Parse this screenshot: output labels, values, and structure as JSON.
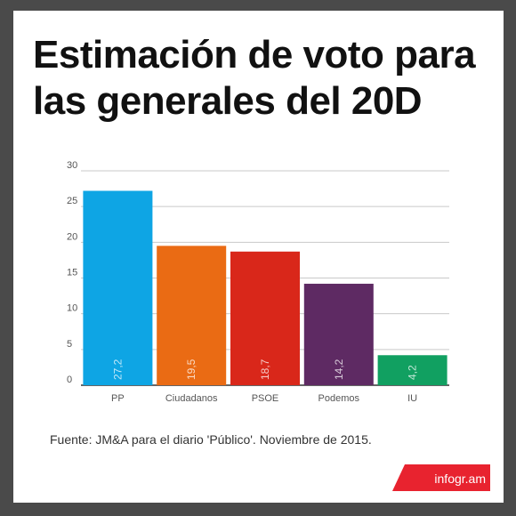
{
  "title": "Estimación de voto para las generales del 20D",
  "source": "Fuente:  JM&A para el diario 'Público'.  Noviembre de 2015.",
  "logo": {
    "text": "infogr.am",
    "color": "#e8232f"
  },
  "chart_data": {
    "type": "bar",
    "categories": [
      "PP",
      "Ciudadanos",
      "PSOE",
      "Podemos",
      "IU"
    ],
    "values": [
      27.2,
      19.5,
      18.7,
      14.2,
      4.2
    ],
    "value_labels": [
      "27,2",
      "19,5",
      "18,7",
      "14,2",
      "4,2"
    ],
    "colors": [
      "#0ea5e4",
      "#ea6b14",
      "#d9271a",
      "#5e2a63",
      "#11a061"
    ],
    "yticks": [
      0,
      5,
      10,
      15,
      20,
      25,
      30
    ],
    "ylim": [
      0,
      30
    ],
    "grid": true,
    "xlabel": "",
    "ylabel": ""
  }
}
